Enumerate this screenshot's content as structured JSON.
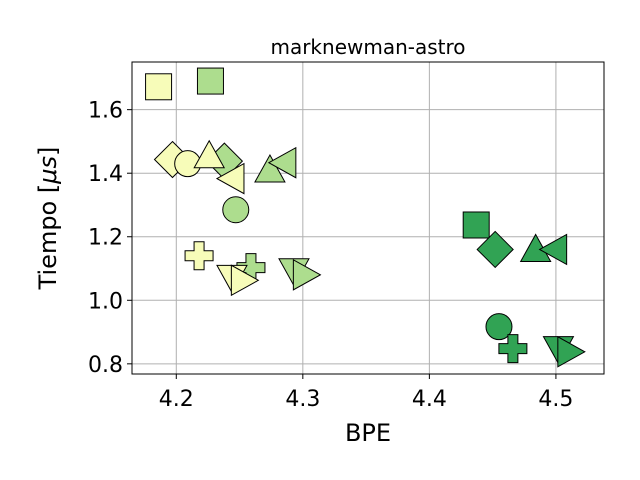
{
  "chart_data": {
    "type": "scatter",
    "title": "marknewman-astro",
    "xlabel": "BPE",
    "ylabel_prefix": "Tiempo [",
    "ylabel_math": "μs",
    "ylabel_suffix": "]",
    "xlim": [
      4.165,
      4.538
    ],
    "ylim": [
      0.768,
      1.75
    ],
    "xticks": [
      4.2,
      4.3,
      4.4,
      4.5
    ],
    "xtick_labels": [
      "4.2",
      "4.3",
      "4.4",
      "4.5"
    ],
    "yticks": [
      0.8,
      1.0,
      1.2,
      1.4,
      1.6
    ],
    "ytick_labels": [
      "0.8",
      "1.0",
      "1.2",
      "1.4",
      "1.6"
    ],
    "grid": true,
    "legend": "none",
    "colors": {
      "light": "#f7fcb9",
      "mid": "#addd8e",
      "dark": "#31a354"
    },
    "points": [
      {
        "x": 4.186,
        "y": 1.672,
        "marker": "square",
        "color": "light"
      },
      {
        "x": 4.227,
        "y": 1.69,
        "marker": "square",
        "color": "mid"
      },
      {
        "x": 4.197,
        "y": 1.443,
        "marker": "diamond",
        "color": "light"
      },
      {
        "x": 4.209,
        "y": 1.43,
        "marker": "circle",
        "color": "light"
      },
      {
        "x": 4.238,
        "y": 1.438,
        "marker": "diamond",
        "color": "mid"
      },
      {
        "x": 4.226,
        "y": 1.455,
        "marker": "triangle-up",
        "color": "light"
      },
      {
        "x": 4.244,
        "y": 1.383,
        "marker": "triangle-left",
        "color": "light"
      },
      {
        "x": 4.247,
        "y": 1.285,
        "marker": "circle",
        "color": "mid"
      },
      {
        "x": 4.274,
        "y": 1.41,
        "marker": "triangle-up",
        "color": "mid"
      },
      {
        "x": 4.285,
        "y": 1.433,
        "marker": "triangle-left",
        "color": "mid"
      },
      {
        "x": 4.218,
        "y": 1.14,
        "marker": "plus",
        "color": "light"
      },
      {
        "x": 4.259,
        "y": 1.103,
        "marker": "plus",
        "color": "mid"
      },
      {
        "x": 4.244,
        "y": 1.072,
        "marker": "triangle-down",
        "color": "light"
      },
      {
        "x": 4.253,
        "y": 1.063,
        "marker": "triangle-right",
        "color": "light"
      },
      {
        "x": 4.293,
        "y": 1.093,
        "marker": "triangle-down",
        "color": "mid"
      },
      {
        "x": 4.302,
        "y": 1.08,
        "marker": "triangle-right",
        "color": "mid"
      },
      {
        "x": 4.437,
        "y": 1.237,
        "marker": "square",
        "color": "dark"
      },
      {
        "x": 4.452,
        "y": 1.16,
        "marker": "diamond",
        "color": "dark"
      },
      {
        "x": 4.484,
        "y": 1.16,
        "marker": "triangle-up",
        "color": "dark"
      },
      {
        "x": 4.499,
        "y": 1.16,
        "marker": "triangle-left",
        "color": "dark"
      },
      {
        "x": 4.455,
        "y": 0.917,
        "marker": "circle",
        "color": "dark"
      },
      {
        "x": 4.466,
        "y": 0.848,
        "marker": "plus",
        "color": "dark"
      },
      {
        "x": 4.502,
        "y": 0.848,
        "marker": "triangle-down",
        "color": "dark"
      },
      {
        "x": 4.511,
        "y": 0.838,
        "marker": "triangle-right",
        "color": "dark"
      }
    ]
  }
}
